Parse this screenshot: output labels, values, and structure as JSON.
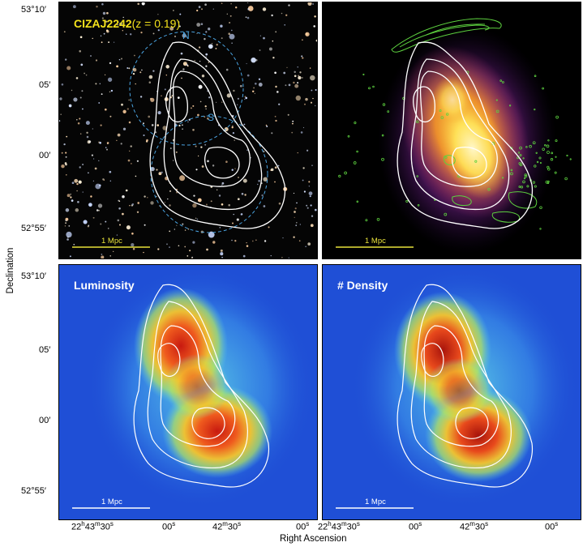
{
  "panels": {
    "optical": {
      "title_main": "CIZAJ2242",
      "title_z": "(z = 0.19)",
      "north_label": "N",
      "south_label": "S",
      "scale_label": "1 Mpc"
    },
    "xray": {
      "scale_label": "1 Mpc"
    },
    "luminosity": {
      "label": "Luminosity",
      "scale_label": "1 Mpc"
    },
    "density": {
      "label": "# Density",
      "scale_label": "1 Mpc"
    }
  },
  "axes": {
    "y_title": "Declination",
    "x_title": "Right Ascension",
    "y_ticks": [
      "53°10′",
      "05′",
      "00′",
      "52°55′"
    ],
    "x_ticks": [
      "22h43m30s",
      "00s",
      "42m30s",
      "00s"
    ],
    "x_ticks_display": [
      {
        "base": "22",
        "h": "h",
        "mid": "43",
        "m": "m",
        "sec": "30",
        "s": "s"
      },
      {
        "base": "00",
        "s": "s"
      },
      {
        "base": "42",
        "m": "m",
        "sec": "30",
        "s": "s"
      },
      {
        "base": "00",
        "s": "s"
      }
    ]
  },
  "colors": {
    "title_yellow": "#f4e21b",
    "circle_blue": "#4aa3e0",
    "radio_green": "#5dd13f",
    "scale_yellow": "#e8e23a",
    "contour_white": "#ffffff"
  }
}
